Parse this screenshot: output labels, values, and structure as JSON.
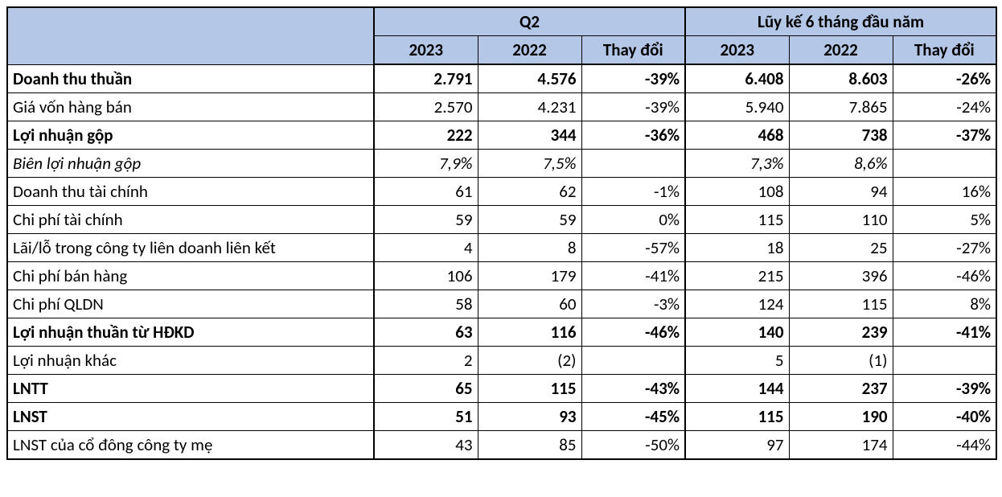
{
  "header_bg": "#b4c7e7",
  "group_headers": [
    "Q2",
    "Lũy kế 6 tháng đầu năm"
  ],
  "sub_headers": [
    "2023",
    "2022",
    "Thay đổi",
    "2023",
    "2022",
    "Thay đổi"
  ],
  "rows": [
    {
      "label": "Doanh thu thuần",
      "cells": [
        "2.791",
        "4.576",
        "-39%",
        "6.408",
        "8.603",
        "-26%"
      ],
      "bold": true
    },
    {
      "label": "Giá vốn hàng bán",
      "cells": [
        "2.570",
        "4.231",
        "-39%",
        "5.940",
        "7.865",
        "-24%"
      ]
    },
    {
      "label": "Lợi nhuận gộp",
      "cells": [
        "222",
        "344",
        "-36%",
        "468",
        "738",
        "-37%"
      ],
      "bold": true
    },
    {
      "label": "Biên lợi nhuận gộp",
      "cells": [
        "7,9%",
        "7,5%",
        "",
        "7,3%",
        "8,6%",
        ""
      ],
      "italic": true
    },
    {
      "label": "Doanh thu tài chính",
      "cells": [
        "61",
        "62",
        "-1%",
        "108",
        "94",
        "16%"
      ]
    },
    {
      "label": "Chi phí tài chính",
      "cells": [
        "59",
        "59",
        "0%",
        "115",
        "110",
        "5%"
      ]
    },
    {
      "label": "Lãi/lỗ trong công ty liên doanh liên kết",
      "cells": [
        "4",
        "8",
        "-57%",
        "18",
        "25",
        "-27%"
      ]
    },
    {
      "label": "Chi phí bán hàng",
      "cells": [
        "106",
        "179",
        "-41%",
        "215",
        "396",
        "-46%"
      ]
    },
    {
      "label": "Chi phí QLDN",
      "cells": [
        "58",
        "60",
        "-3%",
        "124",
        "115",
        "8%"
      ]
    },
    {
      "label": "Lợi nhuận thuần từ HĐKD",
      "cells": [
        "63",
        "116",
        "-46%",
        "140",
        "239",
        "-41%"
      ],
      "bold": true
    },
    {
      "label": "Lợi nhuận khác",
      "cells": [
        "2",
        "(2)",
        "",
        "5",
        "(1)",
        ""
      ]
    },
    {
      "label": "LNTT",
      "cells": [
        "65",
        "115",
        "-43%",
        "144",
        "237",
        "-39%"
      ],
      "bold": true
    },
    {
      "label": "LNST",
      "cells": [
        "51",
        "93",
        "-45%",
        "115",
        "190",
        "-40%"
      ],
      "bold": true
    },
    {
      "label": "LNST của cổ đông công ty mẹ",
      "cells": [
        "43",
        "85",
        "-50%",
        "97",
        "174",
        "-44%"
      ]
    }
  ]
}
